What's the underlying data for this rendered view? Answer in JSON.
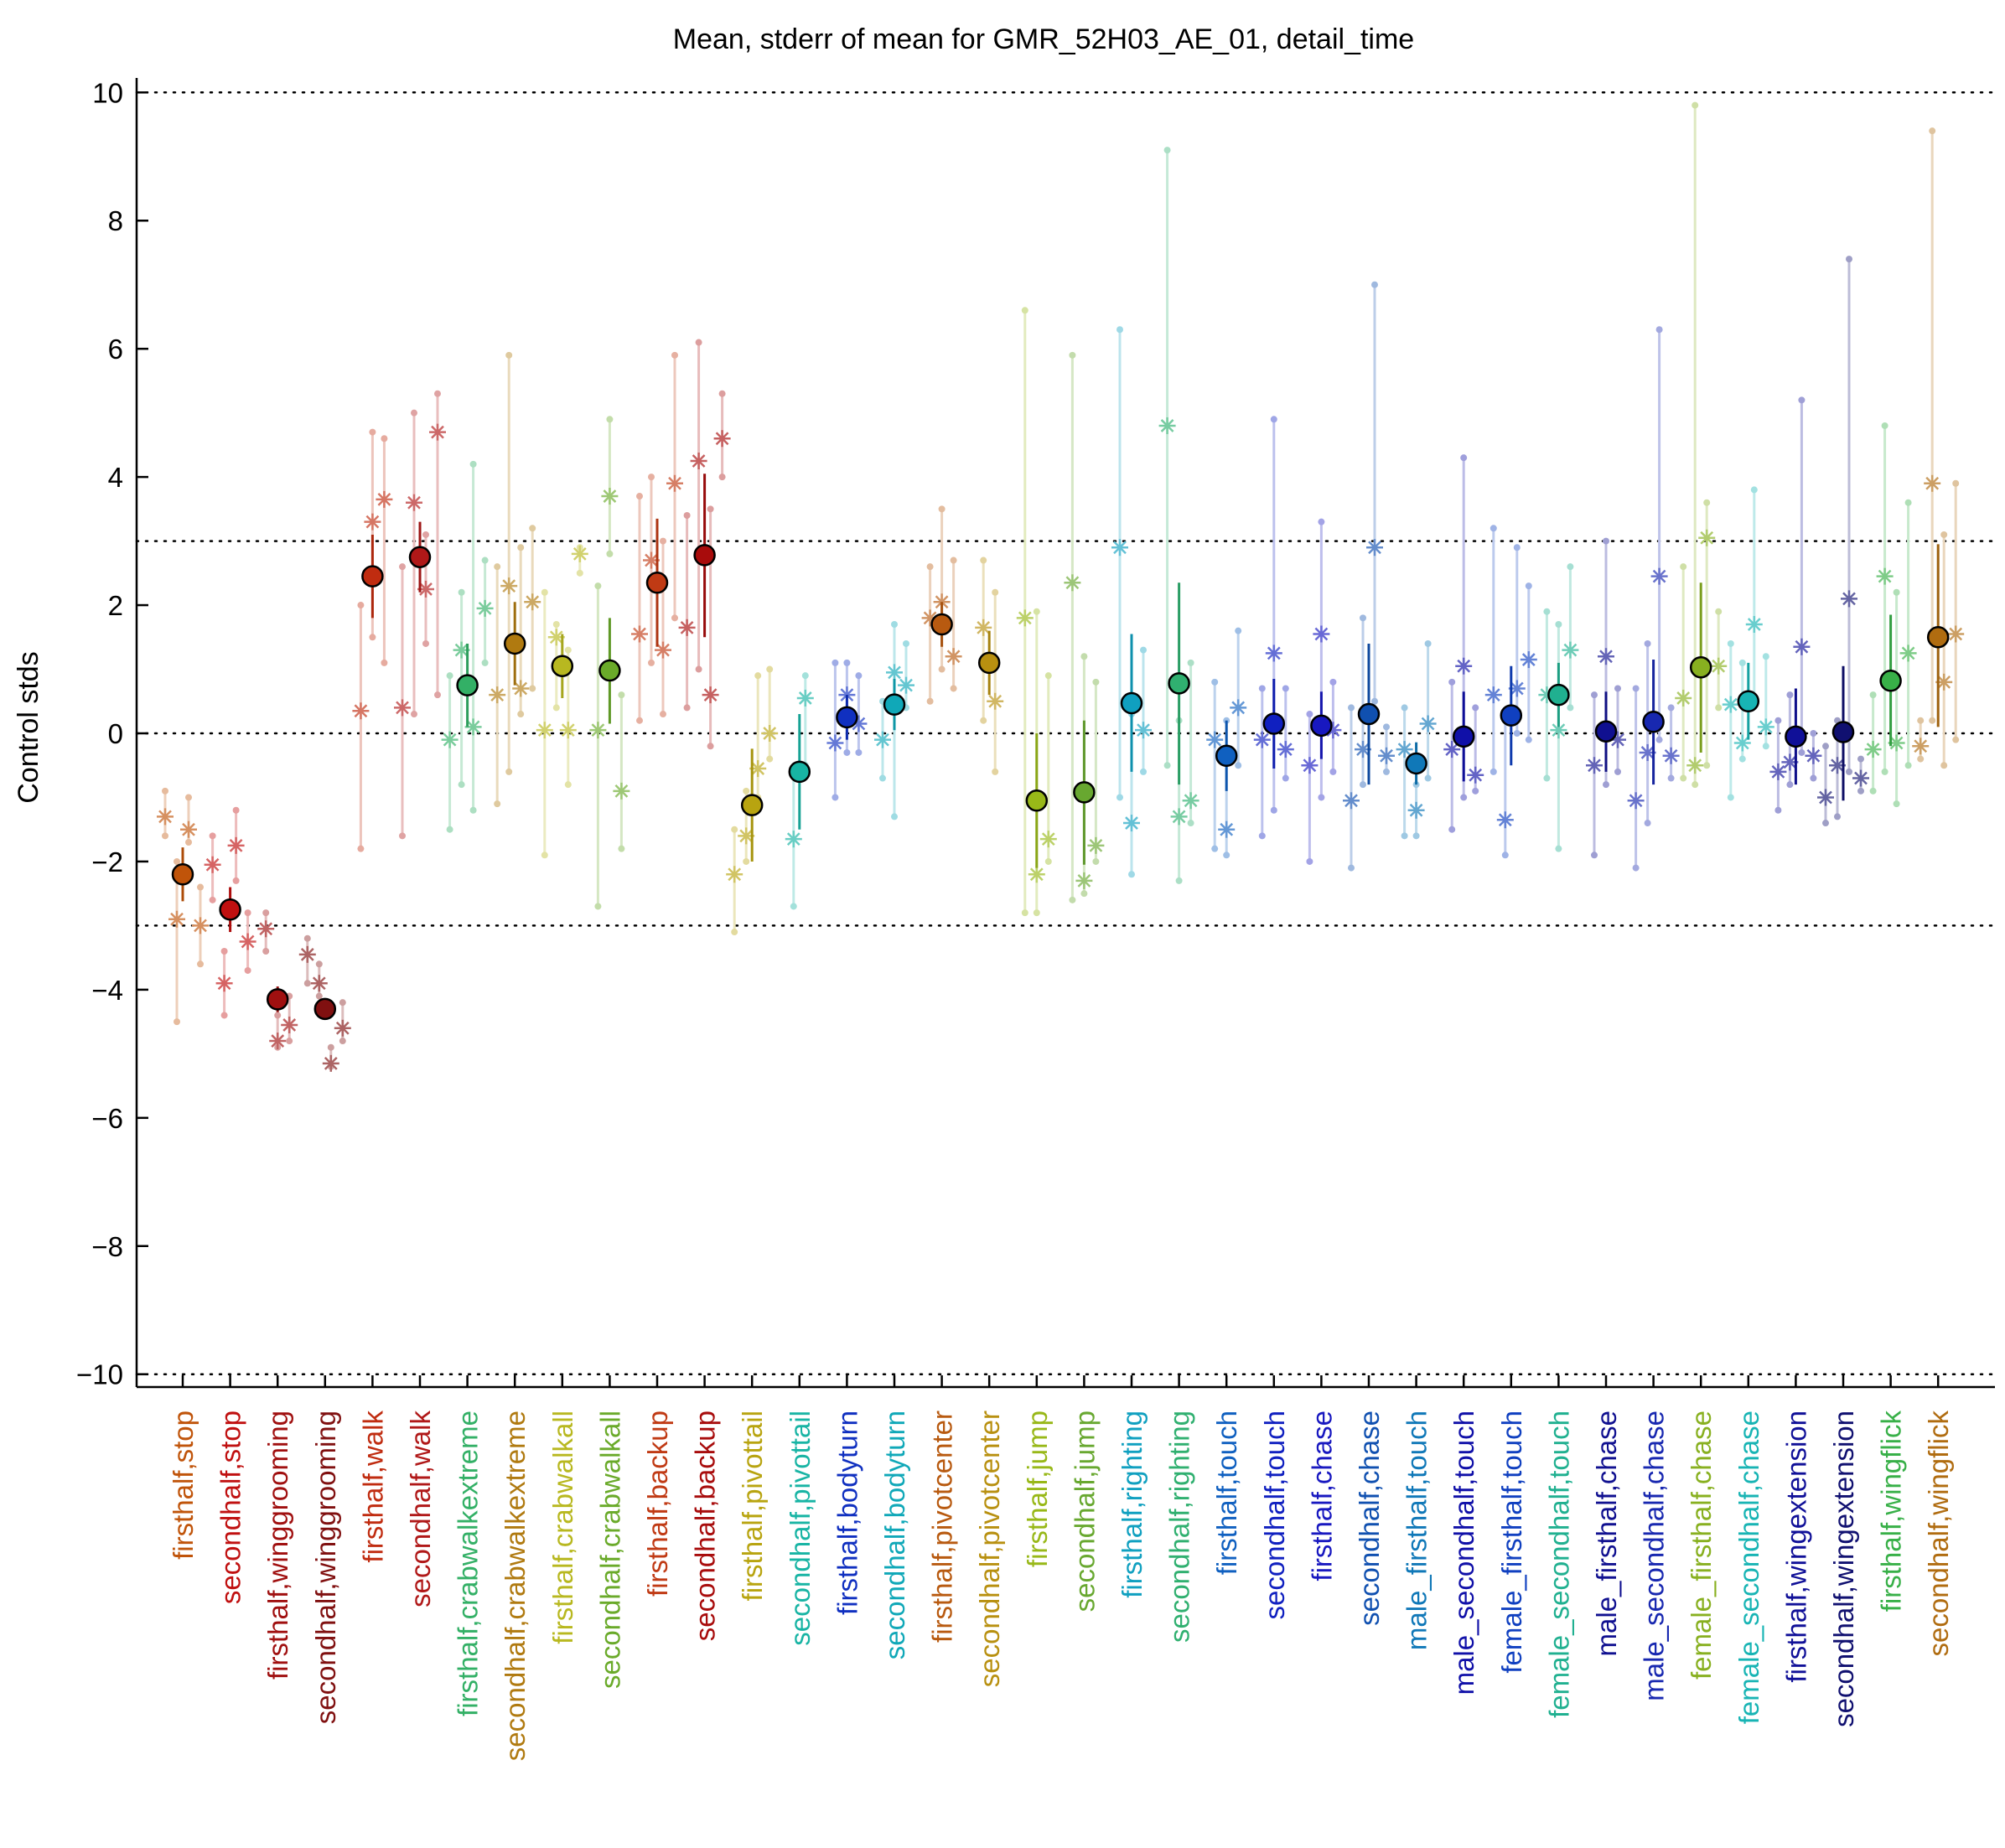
{
  "chart_data": {
    "type": "scatter",
    "title": "Mean, stderr of mean for GMR_52H03_AE_01, detail_time",
    "xlabel": "",
    "ylabel": "Control stds",
    "ylim": [
      -10.2,
      10.2
    ],
    "yticks": [
      -10,
      -8,
      -6,
      -4,
      -2,
      0,
      2,
      4,
      6,
      8,
      10
    ],
    "ytick_labels": [
      "−10",
      "−8",
      "−6",
      "−4",
      "−2",
      "0",
      "2",
      "4",
      "6",
      "8",
      "10"
    ],
    "reference_lines": [
      -10,
      -3,
      0,
      3,
      10
    ],
    "grid": false,
    "legend": "none",
    "categories": [
      "firsthalf,stop",
      "secondhalf,stop",
      "firsthalf,winggrooming",
      "secondhalf,winggrooming",
      "firsthalf,walk",
      "secondhalf,walk",
      "firsthalf,crabwalkextreme",
      "secondhalf,crabwalkextreme",
      "firsthalf,crabwalkall",
      "secondhalf,crabwalkall",
      "firsthalf,backup",
      "secondhalf,backup",
      "firsthalf,pivottail",
      "secondhalf,pivottail",
      "firsthalf,bodyturn",
      "secondhalf,bodyturn",
      "firsthalf,pivotcenter",
      "secondhalf,pivotcenter",
      "firsthalf,jump",
      "secondhalf,jump",
      "firsthalf,righting",
      "secondhalf,righting",
      "firsthalf,touch",
      "secondhalf,touch",
      "firsthalf,chase",
      "secondhalf,chase",
      "male_firsthalf,touch",
      "male_secondhalf,touch",
      "female_firsthalf,touch",
      "female_secondhalf,touch",
      "male_firsthalf,chase",
      "male_secondhalf,chase",
      "female_firsthalf,chase",
      "female_secondhalf,chase",
      "firsthalf,wingextension",
      "secondhalf,wingextension",
      "firsthalf,wingflick",
      "secondhalf,wingflick"
    ],
    "colors": [
      "#c0540a",
      "#c01010",
      "#a01010",
      "#801010",
      "#c02c10",
      "#b01818",
      "#33b066",
      "#b07a10",
      "#b8b820",
      "#6aaa2a",
      "#c03a14",
      "#a80c0c",
      "#b8a410",
      "#18b4a4",
      "#1030c0",
      "#10a8b8",
      "#b85a10",
      "#b89010",
      "#98b818",
      "#68a830",
      "#10a0c0",
      "#30b070",
      "#1060c0",
      "#1020c0",
      "#1818c0",
      "#1050b0",
      "#1078b8",
      "#1010a8",
      "#1040c0",
      "#20b090",
      "#101090",
      "#1828b0",
      "#88b020",
      "#18b4b4",
      "#101098",
      "#101070",
      "#38b048",
      "#b06c10"
    ],
    "means": [
      -2.2,
      -2.75,
      -4.15,
      -4.3,
      2.45,
      2.75,
      0.75,
      1.4,
      1.05,
      0.98,
      2.35,
      2.78,
      -1.12,
      -0.6,
      0.25,
      0.45,
      1.7,
      1.1,
      -1.05,
      -0.92,
      0.47,
      0.78,
      -0.35,
      0.15,
      0.12,
      0.3,
      -0.47,
      -0.05,
      0.28,
      0.6,
      0.03,
      0.18,
      1.03,
      0.5,
      -0.05,
      0.02,
      0.82,
      1.5
    ],
    "stderr_low": [
      -2.62,
      -3.1,
      -4.35,
      -4.45,
      1.8,
      2.2,
      0.1,
      0.75,
      0.55,
      0.15,
      1.35,
      1.5,
      -2.0,
      -1.5,
      -0.1,
      0.05,
      1.35,
      0.6,
      -2.1,
      -2.05,
      -0.6,
      -0.8,
      -0.9,
      -0.55,
      -0.4,
      -0.8,
      -0.8,
      -0.75,
      -0.5,
      0.1,
      -0.6,
      -0.8,
      -0.3,
      -0.1,
      -0.8,
      -1.05,
      -0.2,
      0.1
    ],
    "stderr_high": [
      -1.78,
      -2.4,
      -3.95,
      -4.15,
      3.1,
      3.3,
      1.4,
      2.05,
      1.55,
      1.8,
      3.35,
      4.05,
      -0.24,
      0.3,
      0.6,
      0.85,
      2.05,
      1.6,
      0.0,
      0.2,
      1.55,
      2.35,
      0.2,
      0.85,
      0.65,
      1.4,
      -0.14,
      0.65,
      1.05,
      1.1,
      0.65,
      1.15,
      2.35,
      1.1,
      0.7,
      1.05,
      1.85,
      2.95
    ],
    "sample_means": [
      [
        -1.3,
        -2.9,
        -1.5,
        -3.0
      ],
      [
        -2.05,
        -3.9,
        -1.75,
        -3.25
      ],
      [
        -3.05,
        -4.8,
        -4.55
      ],
      [
        -3.45,
        -3.9,
        -5.15,
        -4.6
      ],
      [
        0.35,
        3.3,
        3.65
      ],
      [
        0.4,
        3.6,
        2.25,
        4.7
      ],
      [
        -0.1,
        1.3,
        0.1,
        1.95
      ],
      [
        0.6,
        2.3,
        0.7,
        2.05
      ],
      [
        0.05,
        1.5,
        0.05,
        2.8
      ],
      [
        0.05,
        3.7,
        -0.9
      ],
      [
        1.55,
        2.7,
        1.3,
        3.9
      ],
      [
        1.65,
        4.25,
        0.6,
        4.6
      ],
      [
        -2.2,
        -1.6,
        -0.55,
        0.0
      ],
      [
        -1.65,
        0.55
      ],
      [
        -0.15,
        0.6,
        0.15
      ],
      [
        -0.1,
        0.95,
        0.75
      ],
      [
        1.8,
        2.05,
        1.2
      ],
      [
        1.65,
        0.5
      ],
      [
        1.8,
        -2.2,
        -1.65
      ],
      [
        2.35,
        -2.3,
        -1.75
      ],
      [
        2.9,
        -1.4,
        0.05
      ],
      [
        4.8,
        -1.3,
        -1.05
      ],
      [
        -0.1,
        -1.5,
        0.4
      ],
      [
        -0.1,
        1.25,
        -0.25
      ],
      [
        -0.5,
        1.55,
        0.05
      ],
      [
        -1.05,
        -0.25,
        2.9,
        -0.35
      ],
      [
        -0.25,
        -1.2,
        0.15
      ],
      [
        -0.25,
        1.05,
        -0.65
      ],
      [
        0.6,
        -1.35,
        0.7,
        1.15
      ],
      [
        0.6,
        0.05,
        1.3
      ],
      [
        -0.5,
        1.2,
        -0.1
      ],
      [
        -1.05,
        -0.3,
        2.45,
        -0.35
      ],
      [
        0.55,
        -0.5,
        3.05,
        1.05
      ],
      [
        0.45,
        -0.15,
        1.7,
        0.1
      ],
      [
        -0.6,
        -0.45,
        1.35,
        -0.35
      ],
      [
        -1.0,
        -0.5,
        2.1,
        -0.7
      ],
      [
        -0.25,
        2.45,
        -0.15,
        1.25
      ],
      [
        -0.2,
        3.9,
        0.8,
        1.55
      ]
    ],
    "sample_ranges": [
      [
        [
          -1.6,
          -0.9
        ],
        [
          -4.5,
          -2.0
        ],
        [
          -1.7,
          -1.0
        ],
        [
          -3.6,
          -2.4
        ]
      ],
      [
        [
          -2.6,
          -1.6
        ],
        [
          -4.4,
          -3.4
        ],
        [
          -2.3,
          -1.2
        ],
        [
          -3.7,
          -2.8
        ]
      ],
      [
        [
          -3.4,
          -2.8
        ],
        [
          -4.9,
          -4.4
        ],
        [
          -4.8,
          -4.1
        ]
      ],
      [
        [
          -3.9,
          -3.2
        ],
        [
          -4.1,
          -3.6
        ],
        [
          -5.2,
          -4.9
        ],
        [
          -4.8,
          -4.2
        ]
      ],
      [
        [
          -1.8,
          2.0
        ],
        [
          1.5,
          4.7
        ],
        [
          1.1,
          4.6
        ]
      ],
      [
        [
          -1.6,
          2.6
        ],
        [
          0.3,
          5.0
        ],
        [
          1.4,
          3.1
        ],
        [
          0.6,
          5.3
        ]
      ],
      [
        [
          -1.5,
          0.9
        ],
        [
          -0.8,
          2.2
        ],
        [
          -1.2,
          4.2
        ],
        [
          1.1,
          2.7
        ]
      ],
      [
        [
          -1.1,
          2.6
        ],
        [
          -0.6,
          5.9
        ],
        [
          0.3,
          2.9
        ],
        [
          0.7,
          3.2
        ]
      ],
      [
        [
          -1.9,
          2.2
        ],
        [
          0.4,
          1.7
        ],
        [
          -0.8,
          1.3
        ],
        [
          2.5,
          2.9
        ]
      ],
      [
        [
          -2.7,
          2.3
        ],
        [
          2.8,
          4.9
        ],
        [
          -1.8,
          0.6
        ]
      ],
      [
        [
          0.2,
          3.7
        ],
        [
          1.1,
          4.0
        ],
        [
          0.3,
          3.0
        ],
        [
          1.8,
          5.9
        ]
      ],
      [
        [
          0.4,
          3.4
        ],
        [
          1.0,
          6.1
        ],
        [
          -0.2,
          3.5
        ],
        [
          4.0,
          5.3
        ]
      ],
      [
        [
          -3.1,
          -1.5
        ],
        [
          -2.0,
          -0.9
        ],
        [
          -1.0,
          0.9
        ],
        [
          -0.4,
          1.0
        ]
      ],
      [
        [
          -2.7,
          -0.6
        ],
        [
          -0.5,
          0.9
        ]
      ],
      [
        [
          -1.0,
          1.1
        ],
        [
          -0.3,
          1.1
        ],
        [
          -0.3,
          0.9
        ]
      ],
      [
        [
          -0.7,
          0.5
        ],
        [
          -1.3,
          1.7
        ],
        [
          0.4,
          1.4
        ]
      ],
      [
        [
          0.5,
          2.6
        ],
        [
          1.0,
          3.5
        ],
        [
          0.7,
          2.7
        ]
      ],
      [
        [
          0.2,
          2.7
        ],
        [
          -0.6,
          2.2
        ]
      ],
      [
        [
          -2.8,
          6.6
        ],
        [
          -2.8,
          1.9
        ],
        [
          -2.0,
          0.9
        ]
      ],
      [
        [
          -2.6,
          5.9
        ],
        [
          -2.5,
          1.2
        ],
        [
          -2.0,
          0.8
        ]
      ],
      [
        [
          -1.0,
          6.3
        ],
        [
          -2.2,
          0.3
        ],
        [
          -0.6,
          1.3
        ]
      ],
      [
        [
          -0.5,
          9.1
        ],
        [
          -2.3,
          0.2
        ],
        [
          -1.4,
          1.1
        ]
      ],
      [
        [
          -1.8,
          0.8
        ],
        [
          -1.9,
          0.2
        ],
        [
          -0.5,
          1.6
        ]
      ],
      [
        [
          -1.6,
          0.7
        ],
        [
          -1.2,
          4.9
        ],
        [
          -0.7,
          0.7
        ]
      ],
      [
        [
          -2.0,
          0.3
        ],
        [
          -1.0,
          3.3
        ],
        [
          -0.6,
          0.8
        ]
      ],
      [
        [
          -2.1,
          0.4
        ],
        [
          -0.8,
          1.8
        ],
        [
          0.5,
          7.0
        ],
        [
          -0.6,
          0.1
        ]
      ],
      [
        [
          -1.6,
          0.4
        ],
        [
          -1.6,
          -0.8
        ],
        [
          -0.7,
          1.4
        ]
      ],
      [
        [
          -1.5,
          0.8
        ],
        [
          -1.0,
          4.3
        ],
        [
          -0.9,
          0.4
        ]
      ],
      [
        [
          -0.6,
          3.2
        ],
        [
          -1.9,
          0.2
        ],
        [
          0.0,
          2.9
        ],
        [
          -0.1,
          2.3
        ]
      ],
      [
        [
          -0.7,
          1.9
        ],
        [
          -1.8,
          1.7
        ],
        [
          0.4,
          2.6
        ]
      ],
      [
        [
          -1.9,
          0.6
        ],
        [
          -0.8,
          3.0
        ],
        [
          -0.6,
          0.7
        ]
      ],
      [
        [
          -2.1,
          0.7
        ],
        [
          -1.4,
          1.4
        ],
        [
          -0.1,
          6.3
        ],
        [
          -0.7,
          0.4
        ]
      ],
      [
        [
          -0.7,
          2.6
        ],
        [
          -0.8,
          9.8
        ],
        [
          -0.5,
          3.6
        ],
        [
          0.4,
          1.9
        ]
      ],
      [
        [
          -1.0,
          1.4
        ],
        [
          -0.4,
          1.1
        ],
        [
          0.5,
          3.8
        ],
        [
          -0.2,
          1.2
        ]
      ],
      [
        [
          -1.2,
          0.2
        ],
        [
          -0.8,
          0.6
        ],
        [
          -0.3,
          5.2
        ],
        [
          -0.7,
          0.0
        ]
      ],
      [
        [
          -1.4,
          -0.2
        ],
        [
          -1.3,
          0.2
        ],
        [
          -0.6,
          7.4
        ],
        [
          -0.9,
          -0.4
        ]
      ],
      [
        [
          -0.9,
          0.6
        ],
        [
          -0.6,
          4.8
        ],
        [
          -1.1,
          2.2
        ],
        [
          -0.5,
          3.6
        ]
      ],
      [
        [
          -0.4,
          0.2
        ],
        [
          0.2,
          9.4
        ],
        [
          -0.5,
          3.1
        ],
        [
          -0.1,
          3.9
        ]
      ]
    ]
  }
}
